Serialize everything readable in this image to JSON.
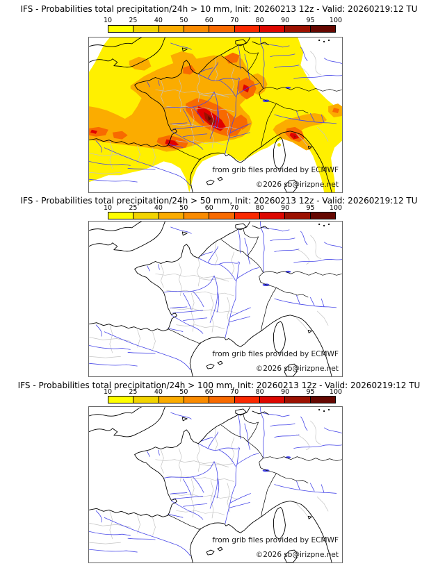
{
  "colorbar": {
    "tick_labels": [
      "10",
      "25",
      "40",
      "50",
      "60",
      "70",
      "80",
      "90",
      "95",
      "100"
    ],
    "segment_colors": [
      "#ffff00",
      "#f2d400",
      "#fbac00",
      "#fa8b00",
      "#f86a00",
      "#fa2900",
      "#dd0700",
      "#9c1000",
      "#650700"
    ]
  },
  "attribution": {
    "source_note": "from grib files provided by ECMWF",
    "copyright": "©2026 sb@irizpne.net"
  },
  "panels": [
    {
      "title": "IFS - Probabilities total precipitation/24h > 10 mm, Init: 20260213 12z - Valid: 20260219:12 TU",
      "threshold_mm": "10"
    },
    {
      "title": "IFS - Probabilities total precipitation/24h > 50 mm, Init: 20260213 12z - Valid: 20260219:12 TU",
      "threshold_mm": "50"
    },
    {
      "title": "IFS - Probabilities total precipitation/24h > 100 mm, Init: 20260213 12z - Valid: 20260219:12 TU",
      "threshold_mm": "100"
    }
  ],
  "map": {
    "model": "IFS",
    "colors": {
      "coastline": "#000000",
      "rivers": "#4646e8",
      "admin_boundaries": "#c4c4c4",
      "background": "#ffffff"
    }
  }
}
